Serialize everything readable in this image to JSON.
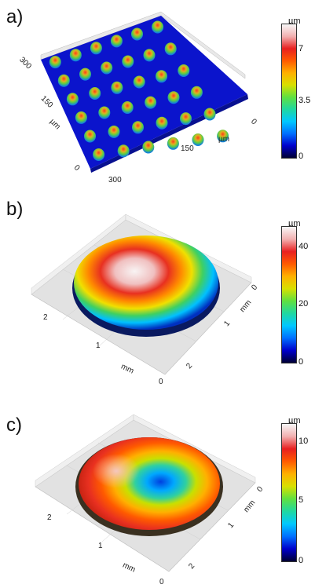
{
  "panels": [
    {
      "label": "a)",
      "unit": "µm",
      "colorbar_ticks": [
        "7",
        "3.5",
        "0"
      ],
      "axis_labels": {
        "left": [
          "300",
          "150",
          "µm",
          "0"
        ],
        "bottom": [
          "300",
          "150",
          "µm",
          "0"
        ]
      }
    },
    {
      "label": "b)",
      "unit": "µm",
      "colorbar_ticks": [
        "40",
        "20",
        "0"
      ],
      "axis_labels": {
        "left": [
          "2",
          "1",
          "mm",
          "0"
        ],
        "right": [
          "0",
          "mm",
          "1",
          "2"
        ]
      }
    },
    {
      "label": "c)",
      "unit": "µm",
      "colorbar_ticks": [
        "10",
        "5",
        "0"
      ],
      "axis_labels": {
        "left": [
          "2",
          "1",
          "mm",
          "0"
        ],
        "right": [
          "0",
          "mm",
          "1",
          "2"
        ]
      }
    }
  ],
  "colors": {
    "cmap": [
      "#000033",
      "#0000cc",
      "#0070ff",
      "#00c8ff",
      "#20d8a0",
      "#60e040",
      "#d8e000",
      "#ffb000",
      "#ff5a00",
      "#e82020",
      "#f2b0b0",
      "#f8f8f8"
    ],
    "plate_a": "#0b14cc",
    "floor": "#d9d9d9"
  }
}
